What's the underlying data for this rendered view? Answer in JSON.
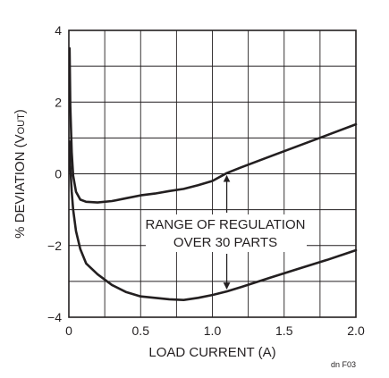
{
  "chart_data": {
    "type": "line",
    "xlabel": "LOAD CURRENT (A)",
    "ylabel": "% DEVIATION (V",
    "ylabel_sub": "OUT",
    "ylabel_close": ")",
    "xlim": [
      0,
      2.0
    ],
    "ylim": [
      -4,
      4
    ],
    "x_ticks": [
      0,
      0.5,
      1.0,
      1.5,
      2.0
    ],
    "x_tick_labels": [
      "0",
      "0.5",
      "1.0",
      "1.5",
      "2.0"
    ],
    "y_ticks": [
      -4,
      -2,
      0,
      2,
      4
    ],
    "y_tick_labels": [
      "−4",
      "−2",
      "0",
      "2",
      "4"
    ],
    "grid": true,
    "series": [
      {
        "x": [
          0.005,
          0.01,
          0.02,
          0.03,
          0.05,
          0.08,
          0.12,
          0.2,
          0.3,
          0.4,
          0.5,
          0.6,
          0.7,
          0.8,
          0.9,
          1.0,
          1.1,
          1.2,
          1.4,
          1.6,
          1.8,
          2.0
        ],
        "y": [
          3.5,
          1.9,
          0.6,
          -0.05,
          -0.5,
          -0.72,
          -0.78,
          -0.8,
          -0.76,
          -0.68,
          -0.6,
          -0.55,
          -0.48,
          -0.42,
          -0.32,
          -0.2,
          0.02,
          0.18,
          0.48,
          0.78,
          1.08,
          1.38
        ]
      },
      {
        "x": [
          0.005,
          0.01,
          0.02,
          0.03,
          0.05,
          0.08,
          0.12,
          0.2,
          0.3,
          0.4,
          0.5,
          0.6,
          0.7,
          0.8,
          0.9,
          1.0,
          1.1,
          1.2,
          1.4,
          1.6,
          1.8,
          2.0
        ],
        "y": [
          0.9,
          0.2,
          -0.5,
          -1.0,
          -1.6,
          -2.1,
          -2.5,
          -2.8,
          -3.1,
          -3.3,
          -3.42,
          -3.46,
          -3.5,
          -3.52,
          -3.46,
          -3.38,
          -3.28,
          -3.16,
          -2.9,
          -2.65,
          -2.4,
          -2.13
        ]
      }
    ],
    "annotation": {
      "lines": [
        "RANGE OF REGULATION",
        "OVER 30 PARTS"
      ],
      "arrow_x": 1.1,
      "arrow_y_top": 0.02,
      "arrow_y_bottom": -3.28
    },
    "figure_code": "dn F03"
  }
}
